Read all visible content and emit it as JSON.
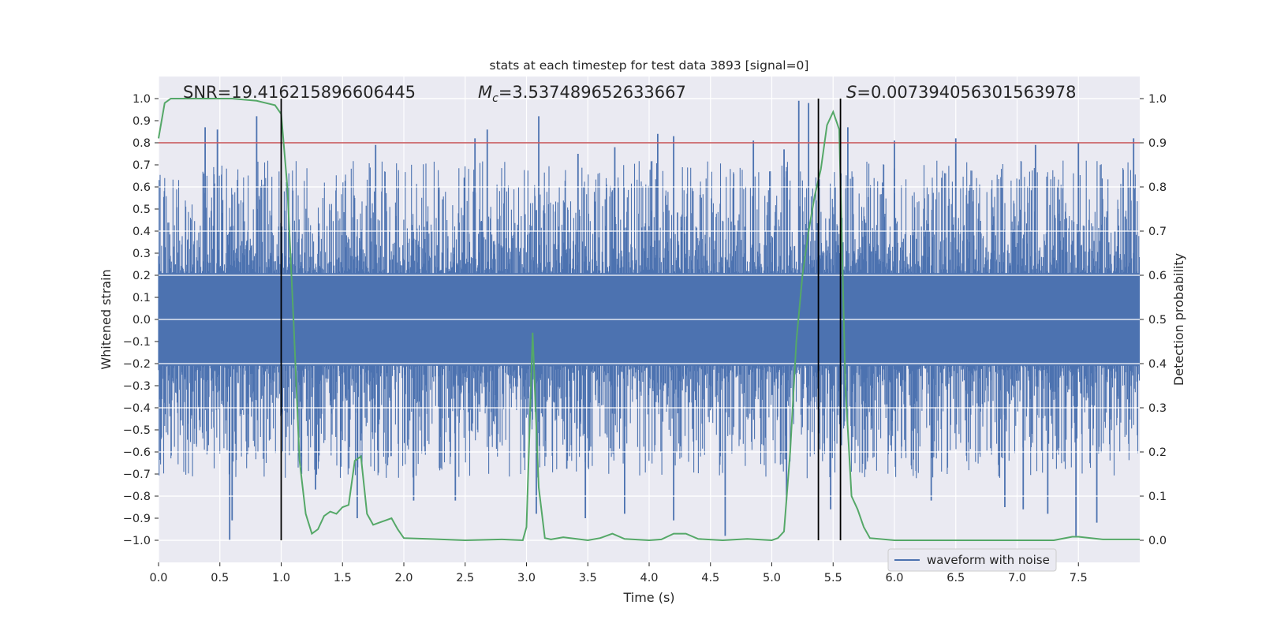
{
  "chart_data": {
    "type": "line",
    "title": "stats at each timestep for test data 3893 [signal=0]",
    "xlabel": "Time (s)",
    "ylabel_left": "Whitened strain",
    "ylabel_right": "Detection probability",
    "xlim": [
      0.0,
      8.0
    ],
    "ylim_left": [
      -1.1,
      1.1
    ],
    "ylim_right": [
      -0.05,
      1.05
    ],
    "x_ticks": [
      "0.0",
      "0.5",
      "1.0",
      "1.5",
      "2.0",
      "2.5",
      "3.0",
      "3.5",
      "4.0",
      "4.5",
      "5.0",
      "5.5",
      "6.0",
      "6.5",
      "7.0",
      "7.5"
    ],
    "y_ticks_left": [
      "1.0",
      "0.9",
      "0.8",
      "0.7",
      "0.6",
      "0.5",
      "0.4",
      "0.3",
      "0.2",
      "0.1",
      "0.0",
      "−0.1",
      "−0.2",
      "−0.3",
      "−0.4",
      "−0.5",
      "−0.6",
      "−0.7",
      "−0.8",
      "−0.9",
      "−1.0"
    ],
    "y_ticks_right": [
      "1.0",
      "0.9",
      "0.8",
      "0.7",
      "0.6",
      "0.5",
      "0.4",
      "0.3",
      "0.2",
      "0.1",
      "0.0"
    ],
    "grid": true,
    "legend": {
      "position": "lower-right",
      "entries": [
        "waveform with noise"
      ]
    },
    "annotations": {
      "snr": "SNR=19.416215896606445",
      "mc_symbol": "M",
      "mc_subscript": "c",
      "mc_value": "=3.537489652633667",
      "s_symbol": "S",
      "s_value": "=0.007394056301563978"
    },
    "threshold_right_axis": 0.9,
    "event_lines_x": [
      1.0,
      5.38,
      5.56
    ],
    "waveform": {
      "name": "waveform with noise",
      "color": "#4c72b0",
      "dense_band": [
        -0.21,
        0.21
      ],
      "positive_spikes": [
        [
          0.38,
          0.87
        ],
        [
          0.48,
          0.86
        ],
        [
          0.8,
          0.92
        ],
        [
          1.0,
          0.63
        ],
        [
          1.77,
          0.79
        ],
        [
          2.58,
          0.82
        ],
        [
          2.68,
          0.86
        ],
        [
          3.1,
          0.92
        ],
        [
          3.42,
          0.75
        ],
        [
          3.72,
          0.78
        ],
        [
          4.07,
          0.84
        ],
        [
          4.2,
          0.83
        ],
        [
          4.85,
          0.81
        ],
        [
          5.1,
          0.77
        ],
        [
          5.22,
          0.99
        ],
        [
          5.3,
          0.98
        ],
        [
          5.62,
          0.87
        ],
        [
          6.0,
          0.81
        ],
        [
          6.5,
          0.82
        ],
        [
          7.15,
          0.79
        ],
        [
          7.5,
          0.8
        ],
        [
          7.95,
          0.82
        ]
      ],
      "negative_spikes": [
        [
          0.58,
          -1.0
        ],
        [
          0.6,
          -0.91
        ],
        [
          1.28,
          -0.77
        ],
        [
          1.62,
          -0.9
        ],
        [
          2.08,
          -0.82
        ],
        [
          2.42,
          -0.82
        ],
        [
          3.08,
          -0.88
        ],
        [
          3.48,
          -0.9
        ],
        [
          3.8,
          -0.88
        ],
        [
          4.2,
          -0.91
        ],
        [
          4.62,
          -0.98
        ],
        [
          5.12,
          -0.82
        ],
        [
          5.48,
          -0.86
        ],
        [
          6.3,
          -0.82
        ],
        [
          6.9,
          -0.85
        ],
        [
          7.05,
          -0.86
        ],
        [
          7.25,
          -0.88
        ],
        [
          7.48,
          -0.98
        ],
        [
          7.65,
          -0.92
        ]
      ]
    },
    "probability": {
      "color": "#55a868",
      "threshold_color": "#c44e52",
      "points": [
        [
          0.0,
          0.91
        ],
        [
          0.05,
          0.99
        ],
        [
          0.1,
          1.0
        ],
        [
          0.3,
          1.0
        ],
        [
          0.6,
          1.0
        ],
        [
          0.8,
          0.995
        ],
        [
          0.95,
          0.985
        ],
        [
          1.0,
          0.965
        ],
        [
          1.05,
          0.8
        ],
        [
          1.1,
          0.5
        ],
        [
          1.15,
          0.18
        ],
        [
          1.2,
          0.06
        ],
        [
          1.25,
          0.015
        ],
        [
          1.3,
          0.025
        ],
        [
          1.35,
          0.055
        ],
        [
          1.4,
          0.065
        ],
        [
          1.45,
          0.06
        ],
        [
          1.5,
          0.075
        ],
        [
          1.55,
          0.08
        ],
        [
          1.6,
          0.18
        ],
        [
          1.65,
          0.19
        ],
        [
          1.7,
          0.06
        ],
        [
          1.75,
          0.035
        ],
        [
          1.8,
          0.04
        ],
        [
          1.85,
          0.045
        ],
        [
          1.9,
          0.05
        ],
        [
          1.95,
          0.025
        ],
        [
          2.0,
          0.005
        ],
        [
          2.2,
          0.003
        ],
        [
          2.5,
          0.0
        ],
        [
          2.8,
          0.002
        ],
        [
          2.97,
          0.0
        ],
        [
          3.0,
          0.03
        ],
        [
          3.05,
          0.47
        ],
        [
          3.1,
          0.12
        ],
        [
          3.15,
          0.005
        ],
        [
          3.2,
          0.002
        ],
        [
          3.3,
          0.007
        ],
        [
          3.5,
          0.0
        ],
        [
          3.6,
          0.005
        ],
        [
          3.7,
          0.015
        ],
        [
          3.8,
          0.003
        ],
        [
          4.0,
          0.0
        ],
        [
          4.1,
          0.002
        ],
        [
          4.2,
          0.015
        ],
        [
          4.3,
          0.015
        ],
        [
          4.4,
          0.003
        ],
        [
          4.6,
          0.0
        ],
        [
          4.8,
          0.003
        ],
        [
          5.0,
          0.0
        ],
        [
          5.05,
          0.005
        ],
        [
          5.1,
          0.02
        ],
        [
          5.15,
          0.2
        ],
        [
          5.2,
          0.45
        ],
        [
          5.25,
          0.6
        ],
        [
          5.3,
          0.7
        ],
        [
          5.35,
          0.78
        ],
        [
          5.4,
          0.84
        ],
        [
          5.45,
          0.94
        ],
        [
          5.5,
          0.97
        ],
        [
          5.55,
          0.93
        ],
        [
          5.6,
          0.35
        ],
        [
          5.65,
          0.1
        ],
        [
          5.7,
          0.07
        ],
        [
          5.75,
          0.03
        ],
        [
          5.8,
          0.005
        ],
        [
          6.0,
          0.0
        ],
        [
          6.5,
          0.0
        ],
        [
          7.0,
          0.0
        ],
        [
          7.3,
          0.0
        ],
        [
          7.45,
          0.008
        ],
        [
          7.5,
          0.008
        ],
        [
          7.7,
          0.002
        ],
        [
          8.0,
          0.002
        ]
      ]
    }
  }
}
